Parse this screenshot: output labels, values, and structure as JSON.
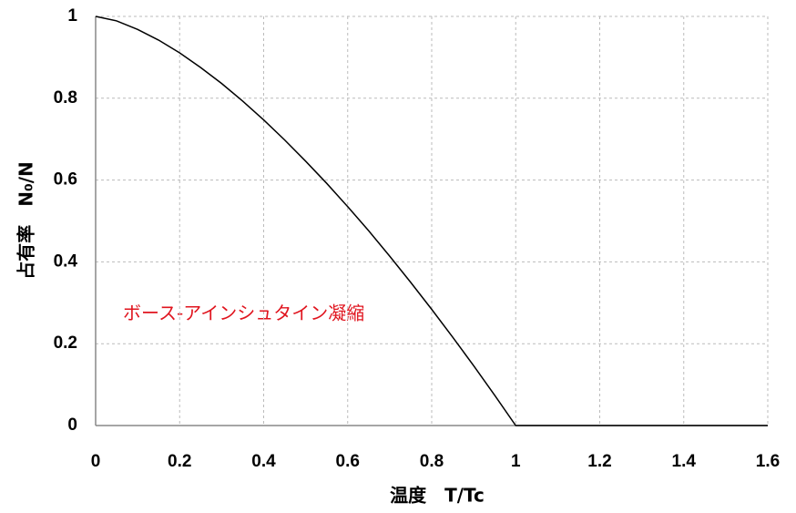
{
  "chart_data": {
    "type": "line",
    "xlabel": "温度　T/Tc",
    "ylabel": "占有率　N₀/N",
    "annotation": "ボース-アインシュタイン凝縮",
    "x": [
      0,
      0.05,
      0.1,
      0.15,
      0.2,
      0.25,
      0.3,
      0.35,
      0.4,
      0.45,
      0.5,
      0.55,
      0.6,
      0.65,
      0.7,
      0.75,
      0.8,
      0.85,
      0.9,
      0.95,
      1,
      1.6
    ],
    "series": [
      {
        "color": "#000000",
        "values": [
          1,
          0.989,
          0.968,
          0.942,
          0.911,
          0.875,
          0.836,
          0.793,
          0.747,
          0.698,
          0.646,
          0.592,
          0.535,
          0.476,
          0.414,
          0.35,
          0.284,
          0.216,
          0.146,
          0.074,
          0,
          0
        ]
      }
    ],
    "xlim": [
      0,
      1.6
    ],
    "ylim": [
      0,
      1
    ],
    "xticks": [
      0,
      0.2,
      0.4,
      0.6,
      0.8,
      1,
      1.2,
      1.4,
      1.6
    ],
    "yticks": [
      0,
      0.2,
      0.4,
      0.6,
      0.8,
      1
    ],
    "grid": true
  }
}
